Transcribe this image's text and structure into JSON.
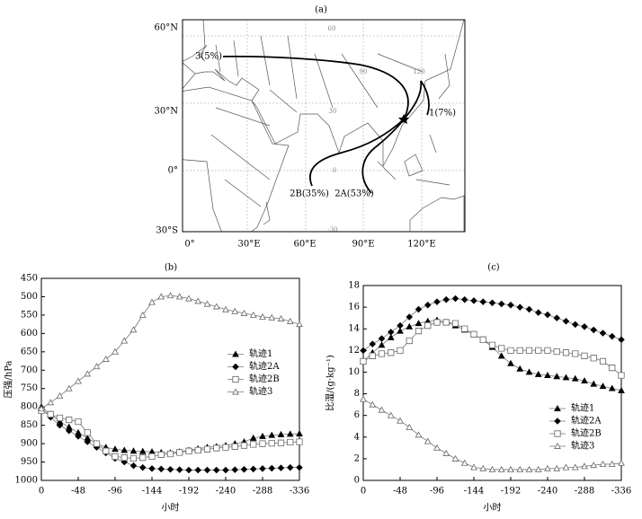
{
  "map": {
    "title": "(a)",
    "lat_labels": [
      "60°N",
      "30°N",
      "0°",
      "30°S"
    ],
    "lon_labels": [
      "0°",
      "30°E",
      "60°E",
      "90°E",
      "120°E"
    ],
    "grid_labels": [
      "60",
      "90",
      "120",
      "30",
      "0",
      "-30"
    ],
    "trajectory_labels": [
      "3(5%)",
      "1(7%)",
      "2B(35%)",
      "2A(53%)"
    ]
  },
  "chart_data": [
    {
      "type": "line",
      "title": "(b)",
      "x_label": "小时",
      "y_label": "压强/hPa",
      "x": [
        0,
        -12,
        -24,
        -36,
        -48,
        -60,
        -72,
        -84,
        -96,
        -108,
        -120,
        -132,
        -144,
        -156,
        -168,
        -180,
        -192,
        -204,
        -216,
        -228,
        -240,
        -252,
        -264,
        -276,
        -288,
        -300,
        -312,
        -324,
        -336
      ],
      "xlim": [
        0,
        -336
      ],
      "xticks": [
        0,
        -48,
        -96,
        -144,
        -192,
        -240,
        -288,
        -336
      ],
      "ylim": [
        450,
        1000
      ],
      "y_inverted": true,
      "yticks": [
        450,
        500,
        550,
        600,
        650,
        700,
        750,
        800,
        850,
        900,
        950,
        1000
      ],
      "legend": "center right",
      "series": [
        {
          "name": "轨迹1",
          "color": "#000000",
          "marker": "triangle-filled",
          "values": [
            800,
            820,
            840,
            855,
            870,
            885,
            900,
            910,
            915,
            918,
            920,
            921,
            922,
            924,
            925,
            922,
            918,
            914,
            910,
            908,
            905,
            900,
            895,
            885,
            880,
            877,
            875,
            874,
            873
          ]
        },
        {
          "name": "轨迹2A",
          "color": "#000000",
          "marker": "diamond-filled",
          "values": [
            805,
            828,
            850,
            865,
            880,
            895,
            910,
            925,
            940,
            950,
            960,
            965,
            968,
            969,
            970,
            971,
            972,
            972,
            972,
            972,
            972,
            971,
            970,
            969,
            968,
            967,
            966,
            965,
            965
          ]
        },
        {
          "name": "轨迹2B",
          "color": "#000000",
          "marker": "square-open",
          "values": [
            810,
            820,
            830,
            835,
            840,
            870,
            900,
            920,
            935,
            938,
            940,
            938,
            935,
            930,
            928,
            924,
            920,
            918,
            915,
            912,
            910,
            908,
            905,
            902,
            900,
            899,
            898,
            896,
            895
          ]
        },
        {
          "name": "轨迹3",
          "color": "#000000",
          "marker": "triangle-open",
          "values": [
            805,
            788,
            770,
            750,
            730,
            710,
            690,
            670,
            650,
            620,
            590,
            550,
            515,
            500,
            497,
            500,
            505,
            512,
            520,
            527,
            535,
            540,
            545,
            550,
            555,
            557,
            560,
            567,
            575
          ]
        }
      ]
    },
    {
      "type": "line",
      "title": "(c)",
      "x_label": "小时",
      "y_label": "比湿/(g·kg⁻¹)",
      "x": [
        0,
        -12,
        -24,
        -36,
        -48,
        -60,
        -72,
        -84,
        -96,
        -108,
        -120,
        -132,
        -144,
        -156,
        -168,
        -180,
        -192,
        -204,
        -216,
        -228,
        -240,
        -252,
        -264,
        -276,
        -288,
        -300,
        -312,
        -324,
        -336
      ],
      "xlim": [
        0,
        -336
      ],
      "xticks": [
        0,
        -48,
        -96,
        -144,
        -192,
        -240,
        -288,
        -336
      ],
      "ylim": [
        0,
        18
      ],
      "yticks": [
        0,
        2,
        4,
        6,
        8,
        10,
        12,
        14,
        16,
        18
      ],
      "legend": "lower right",
      "series": [
        {
          "name": "轨迹1",
          "color": "#000000",
          "marker": "triangle-filled",
          "values": [
            11,
            11.8,
            12.5,
            13.2,
            13.8,
            14.2,
            14.5,
            14.7,
            14.8,
            14.6,
            14.3,
            13.9,
            13.5,
            13.0,
            12.3,
            11.5,
            10.8,
            10.3,
            10.0,
            9.8,
            9.7,
            9.6,
            9.5,
            9.4,
            9.2,
            8.9,
            8.7,
            8.5,
            8.3
          ]
        },
        {
          "name": "轨迹2A",
          "color": "#000000",
          "marker": "diamond-filled",
          "values": [
            12.0,
            12.6,
            13.1,
            13.7,
            14.3,
            15.1,
            15.8,
            16.2,
            16.5,
            16.7,
            16.8,
            16.7,
            16.6,
            16.5,
            16.4,
            16.3,
            16.2,
            16.0,
            15.8,
            15.5,
            15.3,
            15.0,
            14.7,
            14.4,
            14.2,
            13.9,
            13.6,
            13.3,
            13.0
          ]
        },
        {
          "name": "轨迹2B",
          "color": "#000000",
          "marker": "square-open",
          "values": [
            11.0,
            11.5,
            11.7,
            11.8,
            12.0,
            12.9,
            13.8,
            14.3,
            14.6,
            14.6,
            14.5,
            14.0,
            13.5,
            13.0,
            12.5,
            12.2,
            12.0,
            12.0,
            12.0,
            12.0,
            12.0,
            11.9,
            11.8,
            11.7,
            11.5,
            11.3,
            11.0,
            10.4,
            9.7
          ]
        },
        {
          "name": "轨迹3",
          "color": "#000000",
          "marker": "triangle-open",
          "values": [
            7.5,
            7.0,
            6.5,
            6.0,
            5.5,
            4.9,
            4.2,
            3.6,
            3.0,
            2.5,
            2.0,
            1.6,
            1.2,
            1.1,
            1.0,
            1.0,
            1.0,
            1.0,
            1.0,
            1.0,
            1.1,
            1.1,
            1.2,
            1.2,
            1.3,
            1.4,
            1.5,
            1.5,
            1.6
          ]
        }
      ]
    }
  ]
}
